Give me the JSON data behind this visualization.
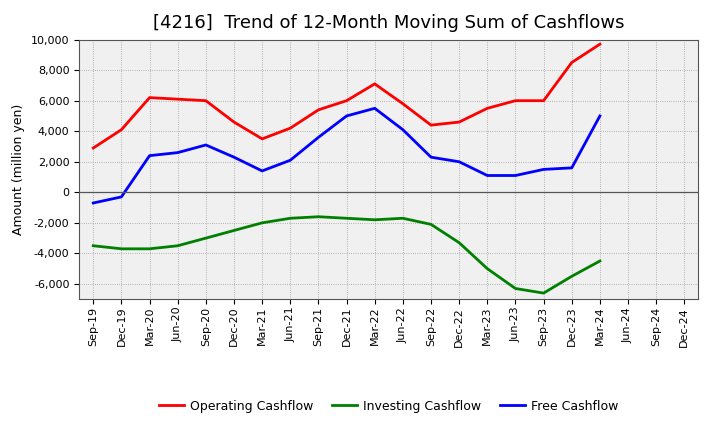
{
  "title": "[4216]  Trend of 12-Month Moving Sum of Cashflows",
  "ylabel": "Amount (million yen)",
  "xlabels": [
    "Sep-19",
    "Dec-19",
    "Mar-20",
    "Jun-20",
    "Sep-20",
    "Dec-20",
    "Mar-21",
    "Jun-21",
    "Sep-21",
    "Dec-21",
    "Mar-22",
    "Jun-22",
    "Sep-22",
    "Dec-22",
    "Mar-23",
    "Jun-23",
    "Sep-23",
    "Dec-23",
    "Mar-24",
    "Jun-24",
    "Sep-24",
    "Dec-24"
  ],
  "operating": [
    2900,
    4100,
    6200,
    6100,
    6000,
    4600,
    3500,
    4200,
    5400,
    6000,
    7100,
    5800,
    4400,
    4600,
    5500,
    6000,
    6000,
    8500,
    9700,
    null,
    null,
    null
  ],
  "investing": [
    -3500,
    -3700,
    -3700,
    -3500,
    -3000,
    -2500,
    -2000,
    -1700,
    -1600,
    -1700,
    -1800,
    -1700,
    -2100,
    -3300,
    -5000,
    -6300,
    -6600,
    -5500,
    -4500,
    null,
    null,
    null
  ],
  "free": [
    -700,
    -300,
    2400,
    2600,
    3100,
    2300,
    1400,
    2100,
    3600,
    5000,
    5500,
    4100,
    2300,
    2000,
    1100,
    1100,
    1500,
    1600,
    5000,
    null,
    null,
    null
  ],
  "operating_color": "#ff0000",
  "investing_color": "#008000",
  "free_color": "#0000ff",
  "ylim": [
    -7000,
    10000
  ],
  "yticks": [
    -6000,
    -4000,
    -2000,
    0,
    2000,
    4000,
    6000,
    8000,
    10000
  ],
  "background_color": "#ffffff",
  "plot_bg_color": "#f0f0f0",
  "grid_color": "#888888",
  "title_fontsize": 13,
  "axis_label_fontsize": 9,
  "tick_fontsize": 8,
  "legend_fontsize": 9
}
